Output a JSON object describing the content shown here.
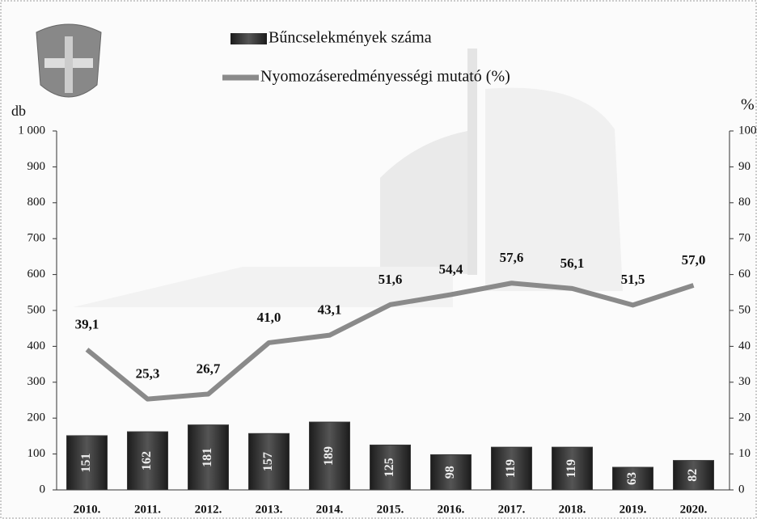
{
  "chart_data": {
    "type": "combo",
    "categories": [
      "2010.",
      "2011.",
      "2012.",
      "2013.",
      "2014.",
      "2015.",
      "2016.",
      "2017.",
      "2018.",
      "2019.",
      "2020."
    ],
    "ylabel": "db",
    "y2label": "%",
    "ylim": [
      0,
      1000
    ],
    "yticks": [
      0,
      100,
      200,
      300,
      400,
      500,
      600,
      700,
      800,
      900,
      {
        "value": 1000,
        "label": "1 000"
      }
    ],
    "y2lim": [
      0,
      100
    ],
    "y2ticks": [
      0,
      10,
      20,
      30,
      40,
      50,
      60,
      70,
      80,
      90,
      100
    ],
    "series": [
      {
        "name": "Bűncselekmények száma",
        "type": "bar",
        "color": "#3a3a3a",
        "values": [
          151,
          162,
          181,
          157,
          189,
          125,
          98,
          119,
          119,
          63,
          82
        ]
      },
      {
        "name": "Nyomozáseredményességi mutató (%)",
        "type": "line",
        "axis": "y2",
        "color": "#8a8a8a",
        "values": [
          39.1,
          25.3,
          26.7,
          41.0,
          43.1,
          51.6,
          54.4,
          57.6,
          56.1,
          51.5,
          57.0
        ],
        "value_labels": [
          "39,1",
          "25,3",
          "26,7",
          "41,0",
          "43,1",
          "51,6",
          "54,4",
          "57,6",
          "56,1",
          "51,5",
          "57,0"
        ]
      }
    ]
  }
}
